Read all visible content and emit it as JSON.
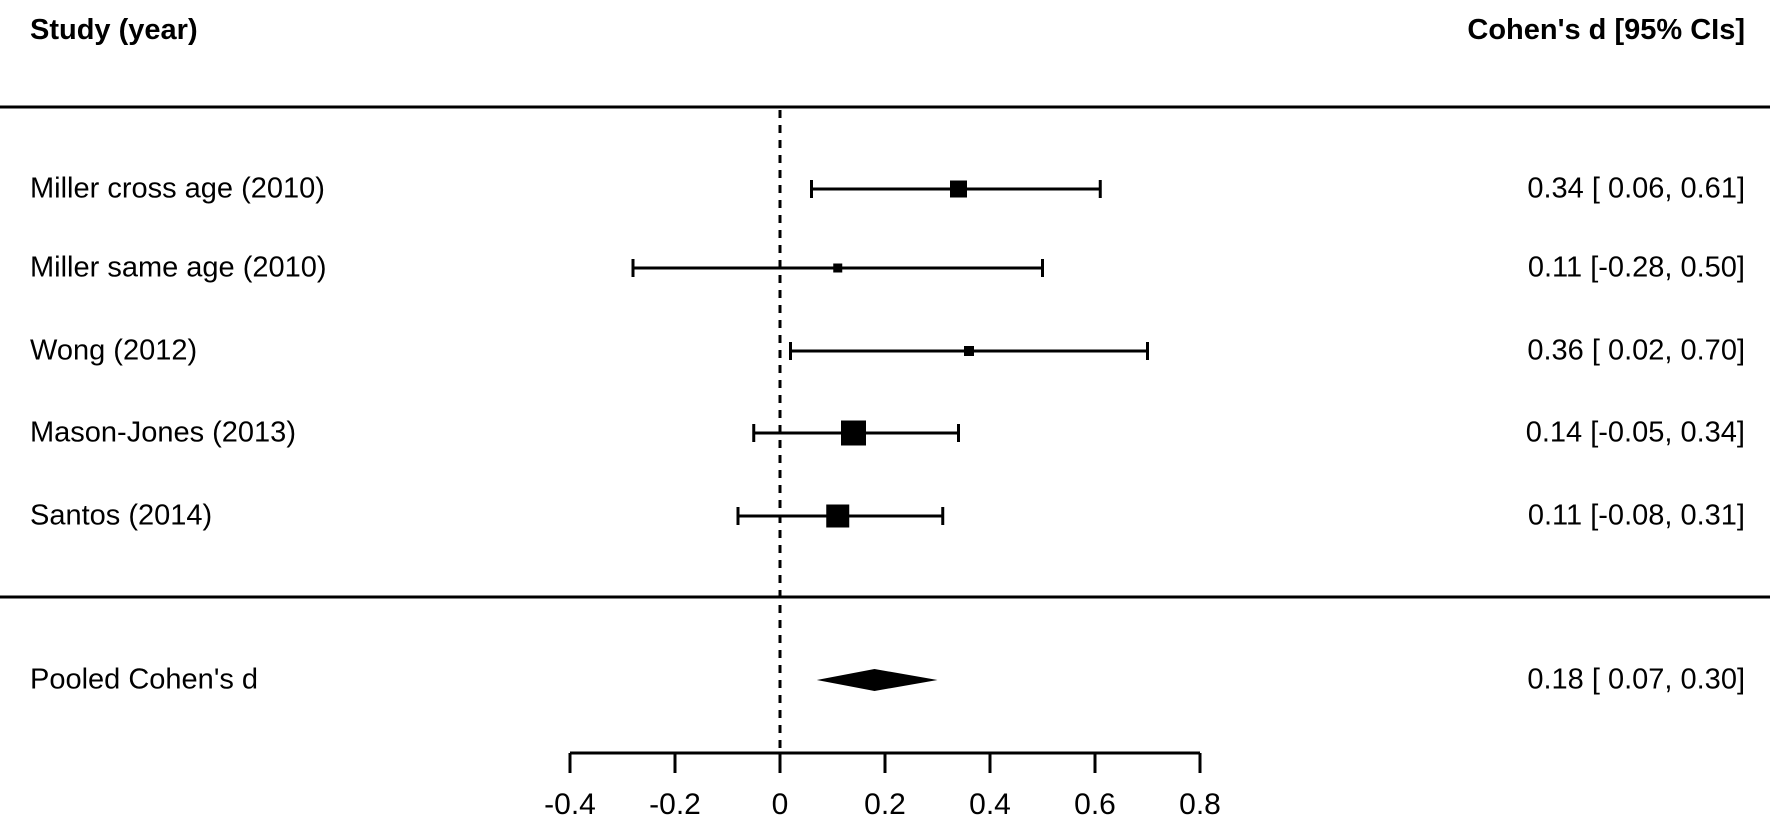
{
  "header": {
    "left": "Study (year)",
    "right": "Cohen's d [95% CIs]"
  },
  "chart_data": {
    "type": "forest",
    "effect_measure": "Cohen's d",
    "column_left_header": "Study (year)",
    "column_right_header": "Cohen's d [95% CIs]",
    "axis": {
      "tick_values": [
        -0.4,
        -0.2,
        0,
        0.2,
        0.4,
        0.6,
        0.8
      ],
      "tick_labels": [
        "-0.4",
        "-0.2",
        "0",
        "0.2",
        "0.4",
        "0.6",
        "0.8"
      ],
      "range": [
        -0.4,
        0.8
      ],
      "zero_reference_line": 0
    },
    "studies": [
      {
        "label": "Miller cross age (2010)",
        "d": 0.34,
        "ci_low": 0.06,
        "ci_high": 0.61,
        "value_text": "0.34 [ 0.06, 0.61]",
        "marker_size": 17
      },
      {
        "label": "Miller same age (2010)",
        "d": 0.11,
        "ci_low": -0.28,
        "ci_high": 0.5,
        "value_text": "0.11 [-0.28, 0.50]",
        "marker_size": 9
      },
      {
        "label": "Wong (2012)",
        "d": 0.36,
        "ci_low": 0.02,
        "ci_high": 0.7,
        "value_text": "0.36 [ 0.02, 0.70]",
        "marker_size": 10
      },
      {
        "label": "Mason-Jones (2013)",
        "d": 0.14,
        "ci_low": -0.05,
        "ci_high": 0.34,
        "value_text": "0.14 [-0.05, 0.34]",
        "marker_size": 25
      },
      {
        "label": "Santos (2014)",
        "d": 0.11,
        "ci_low": -0.08,
        "ci_high": 0.31,
        "value_text": "0.11 [-0.08, 0.31]",
        "marker_size": 23
      }
    ],
    "pooled": {
      "label": "Pooled Cohen's d",
      "d": 0.18,
      "ci_low": 0.07,
      "ci_high": 0.3,
      "value_text": "0.18 [ 0.07, 0.30]"
    }
  },
  "colors": {
    "ink": "#000000",
    "paper": "#ffffff"
  }
}
